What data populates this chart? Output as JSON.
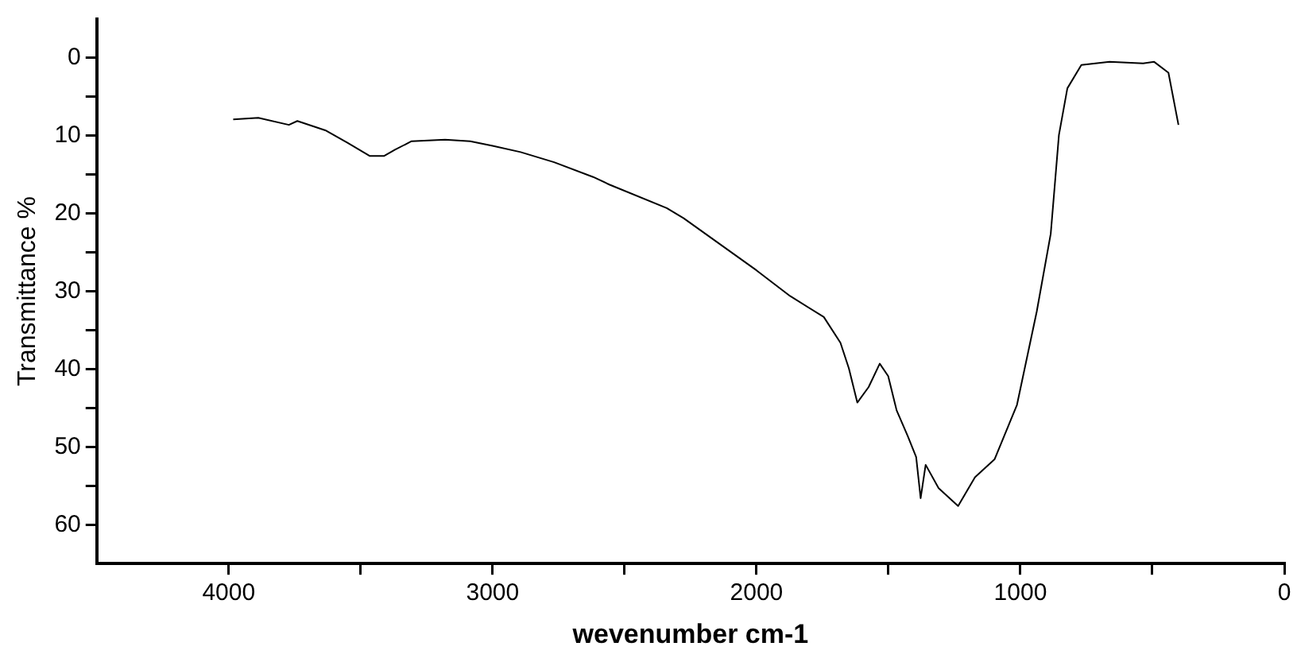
{
  "chart_data": {
    "type": "line",
    "xlabel": "wevenumber cm-1",
    "ylabel": "Transmittance %",
    "x": [
      3983,
      3888,
      3772,
      3740,
      3634,
      3550,
      3465,
      3412,
      3370,
      3307,
      3180,
      3085,
      3000,
      2894,
      2767,
      2619,
      2556,
      2340,
      2276,
      2000,
      1873,
      1745,
      1682,
      1650,
      1618,
      1575,
      1533,
      1501,
      1469,
      1427,
      1395,
      1378,
      1359,
      1310,
      1236,
      1172,
      1098,
      1013,
      938,
      885,
      854,
      822,
      769,
      662,
      535,
      493,
      439,
      401
    ],
    "series": [
      {
        "color": "#000000",
        "values": [
          7.9,
          7.7,
          8.6,
          8.1,
          9.3,
          10.9,
          12.6,
          12.6,
          11.8,
          10.7,
          10.5,
          10.7,
          11.3,
          12.1,
          13.4,
          15.3,
          16.3,
          19.3,
          20.6,
          27.3,
          30.6,
          33.3,
          36.6,
          39.9,
          44.3,
          42.3,
          39.3,
          40.9,
          45.3,
          48.6,
          51.3,
          56.6,
          52.3,
          55.3,
          57.6,
          53.9,
          51.6,
          44.6,
          32.6,
          22.6,
          9.9,
          3.9,
          0.9,
          0.5,
          0.7,
          0.5,
          1.9,
          8.6
        ]
      }
    ],
    "xlim": [
      4500,
      0
    ],
    "xticks": [
      4000,
      {
        "value": 3500,
        "label": null
      },
      3000,
      {
        "value": 2500,
        "label": null
      },
      2000,
      {
        "value": 1500,
        "label": null
      },
      1000,
      {
        "value": 500,
        "label": null
      },
      0
    ],
    "ylim": [
      65,
      -5
    ],
    "yticks": [
      0,
      {
        "value": 5,
        "label": null
      },
      10,
      {
        "value": 15,
        "label": null
      },
      20,
      {
        "value": 25,
        "label": null
      },
      30,
      {
        "value": 35,
        "label": null
      },
      40,
      {
        "value": 45,
        "label": null
      },
      50,
      {
        "value": 55,
        "label": null
      },
      60
    ],
    "grid": false,
    "legend": false,
    "marker": "none",
    "line_style": "solid"
  }
}
